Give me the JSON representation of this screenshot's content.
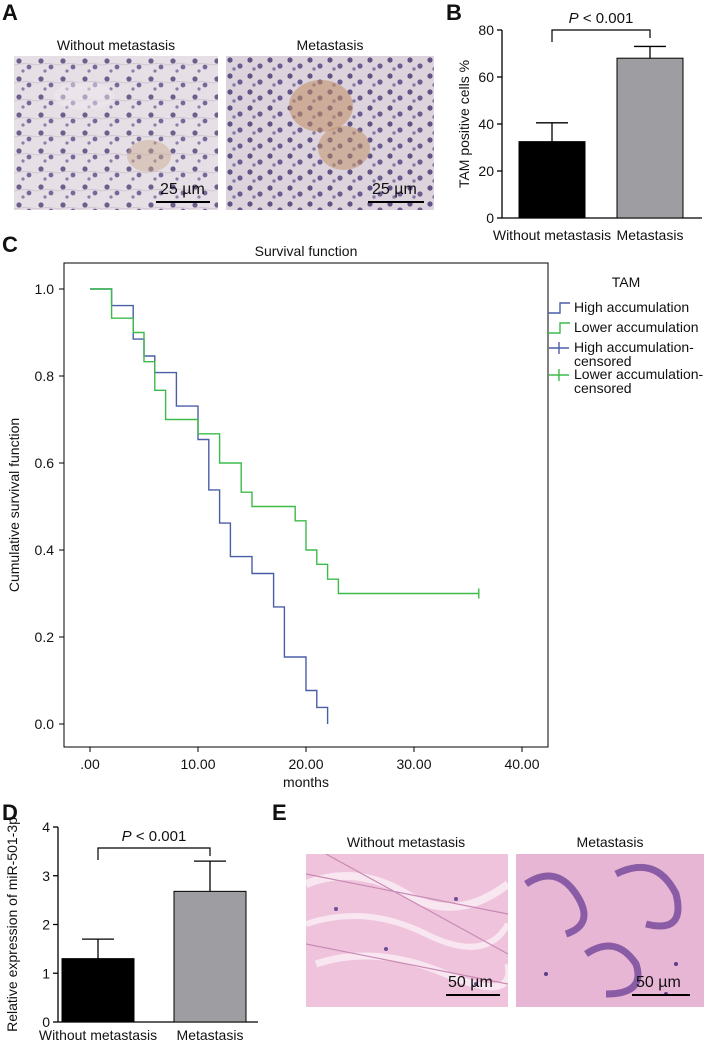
{
  "panels": {
    "A": {
      "letter": "A",
      "left_caption": "Without metastasis",
      "right_caption": "Metastasis",
      "left_scale": "25 µm",
      "right_scale": "25 µm"
    },
    "E": {
      "letter": "E",
      "left_caption": "Without metastasis",
      "right_caption": "Metastasis",
      "left_scale": "50 µm",
      "right_scale": "50 µm"
    }
  },
  "chart_data": [
    {
      "id": "B",
      "letter": "B",
      "type": "bar",
      "categories": [
        "Without metastasis",
        "Metastasis"
      ],
      "values": [
        32.5,
        68
      ],
      "errors": [
        8,
        5
      ],
      "colors": [
        "#000000",
        "#9e9ea2"
      ],
      "ylabel": "TAM positive cells %",
      "ylim": [
        0,
        80
      ],
      "yticks": [
        0,
        20,
        40,
        60,
        80
      ],
      "annotation": "P < 0.001",
      "annotation_italic": "P",
      "annotation_rest": " < 0.001"
    },
    {
      "id": "C",
      "letter": "C",
      "type": "line",
      "title": "Survival function",
      "xlabel": "months",
      "ylabel": "Cumulative survival function",
      "xlim": [
        0,
        40
      ],
      "ylim": [
        0,
        1
      ],
      "xticks": [
        0,
        10,
        20,
        30,
        40
      ],
      "xtick_labels": [
        ".00",
        "10.00",
        "20.00",
        "30.00",
        "40.00"
      ],
      "yticks": [
        0,
        0.2,
        0.4,
        0.6,
        0.8,
        1.0
      ],
      "ytick_labels": [
        "0.0",
        "0.2",
        "0.4",
        "0.6",
        "0.8",
        "1.0"
      ],
      "legend_title": "TAM",
      "legend": [
        {
          "label": "High accumulation",
          "color": "#4a5ea8",
          "kind": "step"
        },
        {
          "label": "Lower accumulation",
          "color": "#3dbb4a",
          "kind": "step"
        },
        {
          "label": "High accumulation-",
          "label2": "censored",
          "color": "#4a5ea8",
          "kind": "censor"
        },
        {
          "label": "Lower accumulation-",
          "label2": "censored",
          "color": "#3dbb4a",
          "kind": "censor"
        }
      ],
      "series": [
        {
          "name": "High accumulation",
          "color": "#4a5ea8",
          "steps": [
            [
              0,
              1.0
            ],
            [
              2,
              0.962
            ],
            [
              4,
              0.885
            ],
            [
              5,
              0.846
            ],
            [
              6,
              0.808
            ],
            [
              8,
              0.731
            ],
            [
              10,
              0.654
            ],
            [
              11,
              0.538
            ],
            [
              12,
              0.462
            ],
            [
              13,
              0.385
            ],
            [
              15,
              0.346
            ],
            [
              17,
              0.269
            ],
            [
              18,
              0.154
            ],
            [
              20,
              0.077
            ],
            [
              21,
              0.038
            ],
            [
              22,
              0.0
            ]
          ],
          "end": 22
        },
        {
          "name": "Lower accumulation",
          "color": "#3dbb4a",
          "steps": [
            [
              0,
              1.0
            ],
            [
              2,
              0.933
            ],
            [
              4,
              0.9
            ],
            [
              5,
              0.833
            ],
            [
              6,
              0.767
            ],
            [
              7,
              0.7
            ],
            [
              10,
              0.667
            ],
            [
              12,
              0.6
            ],
            [
              14,
              0.533
            ],
            [
              15,
              0.5
            ],
            [
              19,
              0.467
            ],
            [
              20,
              0.4
            ],
            [
              21,
              0.367
            ],
            [
              22,
              0.333
            ],
            [
              23,
              0.3
            ]
          ],
          "end": 36,
          "censor": [
            [
              36,
              0.3
            ]
          ]
        }
      ]
    },
    {
      "id": "D",
      "letter": "D",
      "type": "bar",
      "categories": [
        "Without metastasis",
        "Metastasis"
      ],
      "values": [
        1.3,
        2.68
      ],
      "errors": [
        0.4,
        0.62
      ],
      "colors": [
        "#000000",
        "#9e9ea2"
      ],
      "ylabel": "Relative expression of miR-501-3p",
      "ylim": [
        0,
        4
      ],
      "yticks": [
        0,
        1,
        2,
        3,
        4
      ],
      "annotation": "P < 0.001",
      "annotation_italic": "P",
      "annotation_rest": " < 0.001"
    }
  ]
}
